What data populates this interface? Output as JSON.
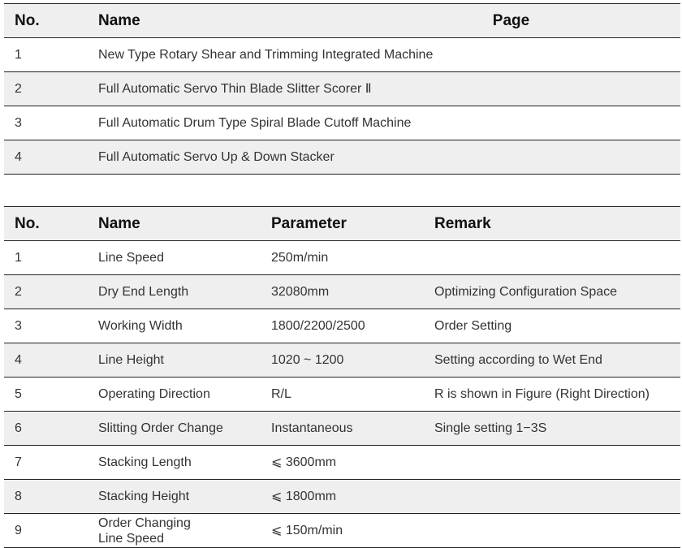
{
  "machines_table": {
    "headers": [
      "No.",
      "Name",
      "Page"
    ],
    "rows": [
      {
        "no": "1",
        "name": "New Type Rotary Shear and Trimming Integrated Machine",
        "page": ""
      },
      {
        "no": "2",
        "name": "Full Automatic Servo Thin Blade Slitter Scorer Ⅱ",
        "page": ""
      },
      {
        "no": "3",
        "name": "Full Automatic Drum Type Spiral Blade Cutoff Machine",
        "page": ""
      },
      {
        "no": "4",
        "name": "Full Automatic Servo Up & Down Stacker",
        "page": ""
      }
    ]
  },
  "parameters_table": {
    "headers": [
      "No.",
      "Name",
      "Parameter",
      "Remark"
    ],
    "rows": [
      {
        "no": "1",
        "name": "Line Speed",
        "parameter": "250m/min",
        "remark": ""
      },
      {
        "no": "2",
        "name": "Dry End Length",
        "parameter": "32080mm",
        "remark": "Optimizing Configuration Space"
      },
      {
        "no": "3",
        "name": "Working Width",
        "parameter": "1800/2200/2500",
        "remark": "Order Setting"
      },
      {
        "no": "4",
        "name": "Line Height",
        "parameter": "1020 ~ 1200",
        "remark": "Setting according to Wet End"
      },
      {
        "no": "5",
        "name": "Operating Direction",
        "parameter": "R/L",
        "remark": "R is shown in Figure (Right Direction)"
      },
      {
        "no": "6",
        "name": "Slitting Order Change",
        "parameter": "Instantaneous",
        "remark": "Single setting 1−3S"
      },
      {
        "no": "7",
        "name": "Stacking Length",
        "parameter": "⩽ 3600mm",
        "remark": ""
      },
      {
        "no": "8",
        "name": "Stacking Height",
        "parameter": "⩽ 1800mm",
        "remark": ""
      },
      {
        "no": "9",
        "name": "Order Changing",
        "name_line2": "Line Speed",
        "parameter": "⩽ 150m/min",
        "remark": ""
      }
    ]
  }
}
